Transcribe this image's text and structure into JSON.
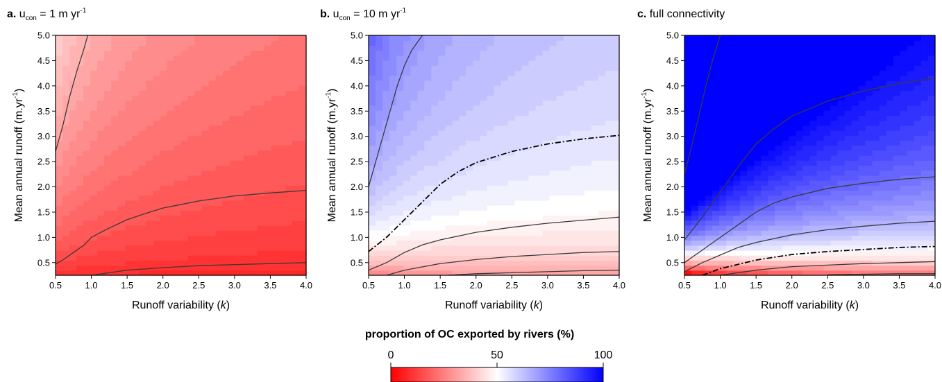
{
  "chart_data": [
    {
      "type": "heatmap",
      "panel_label": "a.",
      "title_parts": [
        "u",
        "con",
        " = 1 m yr",
        "-1"
      ],
      "xlabel_parts": [
        "Runoff variability (",
        "k",
        ")"
      ],
      "ylabel": "Mean annual runoff (m.yr",
      "ylabel_sup": "-1",
      "ylabel_end": ")",
      "xlim": [
        0.5,
        4.0
      ],
      "ylim": [
        0.25,
        5.0
      ],
      "xticks": [
        "0.5",
        "1.0",
        "1.5",
        "2.0",
        "2.5",
        "3.0",
        "3.5",
        "4.0"
      ],
      "yticks": [
        "0.5",
        "1.0",
        "1.5",
        "2.0",
        "2.5",
        "3.0",
        "3.5",
        "4.0",
        "4.5",
        "5.0"
      ],
      "field": {
        "kind": "red",
        "base": 0.06,
        "gain": 0.28
      },
      "contours": [
        {
          "style": "solid",
          "points": [
            [
              0.5,
              2.7
            ],
            [
              0.6,
              3.2
            ],
            [
              0.7,
              3.8
            ],
            [
              0.8,
              4.3
            ],
            [
              0.9,
              4.75
            ],
            [
              0.95,
              5.0
            ]
          ]
        },
        {
          "style": "solid",
          "points": [
            [
              0.5,
              0.47
            ],
            [
              0.6,
              0.55
            ],
            [
              0.75,
              0.7
            ],
            [
              0.9,
              0.85
            ],
            [
              1.0,
              1.0
            ],
            [
              1.2,
              1.15
            ],
            [
              1.5,
              1.35
            ],
            [
              1.75,
              1.47
            ],
            [
              2.0,
              1.58
            ],
            [
              2.5,
              1.72
            ],
            [
              3.0,
              1.82
            ],
            [
              3.5,
              1.88
            ],
            [
              4.0,
              1.93
            ]
          ]
        },
        {
          "style": "solid",
          "points": [
            [
              1.0,
              0.25
            ],
            [
              1.25,
              0.3
            ],
            [
              1.5,
              0.35
            ],
            [
              2.0,
              0.4
            ],
            [
              2.5,
              0.44
            ],
            [
              3.0,
              0.46
            ],
            [
              3.5,
              0.48
            ],
            [
              4.0,
              0.5
            ]
          ]
        }
      ]
    },
    {
      "type": "heatmap",
      "panel_label": "b.",
      "title_parts": [
        "u",
        "con",
        " = 10 m yr",
        "-1"
      ],
      "xlabel_parts": [
        "Runoff variability (",
        "k",
        ")"
      ],
      "ylabel": "Mean annual runoff (m.yr",
      "ylabel_sup": "-1",
      "ylabel_end": ")",
      "xlim": [
        0.5,
        4.0
      ],
      "ylim": [
        0.25,
        5.0
      ],
      "xticks": [
        "0.5",
        "1.0",
        "1.5",
        "2.0",
        "2.5",
        "3.0",
        "3.5",
        "4.0"
      ],
      "yticks": [
        "0.5",
        "1.0",
        "1.5",
        "2.0",
        "2.5",
        "3.0",
        "3.5",
        "4.0",
        "4.5",
        "5.0"
      ],
      "field": {
        "kind": "diverge",
        "base": 0.4,
        "gain": 0.12
      },
      "contours": [
        {
          "style": "solid",
          "points": [
            [
              0.5,
              2.0
            ],
            [
              0.6,
              2.5
            ],
            [
              0.7,
              3.0
            ],
            [
              0.8,
              3.5
            ],
            [
              0.9,
              4.0
            ],
            [
              1.0,
              4.4
            ],
            [
              1.1,
              4.7
            ],
            [
              1.25,
              5.0
            ]
          ]
        },
        {
          "style": "dashdot",
          "points": [
            [
              0.5,
              0.72
            ],
            [
              0.75,
              1.0
            ],
            [
              1.0,
              1.35
            ],
            [
              1.25,
              1.7
            ],
            [
              1.5,
              2.05
            ],
            [
              1.75,
              2.3
            ],
            [
              2.0,
              2.48
            ],
            [
              2.5,
              2.7
            ],
            [
              3.0,
              2.85
            ],
            [
              3.5,
              2.95
            ],
            [
              4.0,
              3.02
            ]
          ]
        },
        {
          "style": "solid",
          "points": [
            [
              0.5,
              0.35
            ],
            [
              0.75,
              0.5
            ],
            [
              1.0,
              0.7
            ],
            [
              1.25,
              0.85
            ],
            [
              1.5,
              0.95
            ],
            [
              2.0,
              1.1
            ],
            [
              2.5,
              1.2
            ],
            [
              3.0,
              1.28
            ],
            [
              3.5,
              1.34
            ],
            [
              4.0,
              1.4
            ]
          ]
        },
        {
          "style": "solid",
          "points": [
            [
              0.75,
              0.25
            ],
            [
              1.0,
              0.35
            ],
            [
              1.5,
              0.48
            ],
            [
              2.0,
              0.56
            ],
            [
              2.5,
              0.62
            ],
            [
              3.0,
              0.66
            ],
            [
              3.5,
              0.7
            ],
            [
              4.0,
              0.72
            ]
          ]
        },
        {
          "style": "solid",
          "points": [
            [
              1.6,
              0.25
            ],
            [
              2.0,
              0.28
            ],
            [
              2.5,
              0.3
            ],
            [
              3.0,
              0.32
            ],
            [
              3.5,
              0.34
            ],
            [
              4.0,
              0.35
            ]
          ]
        }
      ]
    },
    {
      "type": "heatmap",
      "panel_label": "c.",
      "title_parts": [
        "full connectivity"
      ],
      "xlabel_parts": [
        "Runoff variability (",
        "k",
        ")"
      ],
      "ylabel": "Mean annual runoff (m.yr",
      "ylabel_sup": "-1",
      "ylabel_end": ")",
      "xlim": [
        0.5,
        4.0
      ],
      "ylim": [
        0.25,
        5.0
      ],
      "xticks": [
        "0.5",
        "1.0",
        "1.5",
        "2.0",
        "2.5",
        "3.0",
        "3.5",
        "4.0"
      ],
      "yticks": [
        "0.5",
        "1.0",
        "1.5",
        "2.0",
        "2.5",
        "3.0",
        "3.5",
        "4.0",
        "4.5",
        "5.0"
      ],
      "field": {
        "kind": "diverge",
        "base": 0.44,
        "gain": 0.42
      },
      "contours": [
        {
          "style": "solid",
          "points": [
            [
              0.5,
              2.25
            ],
            [
              0.6,
              2.8
            ],
            [
              0.7,
              3.4
            ],
            [
              0.8,
              4.0
            ],
            [
              0.9,
              4.55
            ],
            [
              1.0,
              5.0
            ]
          ]
        },
        {
          "style": "solid",
          "points": [
            [
              0.5,
              0.95
            ],
            [
              0.75,
              1.4
            ],
            [
              1.0,
              1.9
            ],
            [
              1.25,
              2.4
            ],
            [
              1.5,
              2.85
            ],
            [
              1.75,
              3.15
            ],
            [
              2.0,
              3.4
            ],
            [
              2.5,
              3.7
            ],
            [
              3.0,
              3.9
            ],
            [
              3.5,
              4.05
            ],
            [
              4.0,
              4.15
            ]
          ]
        },
        {
          "style": "solid",
          "points": [
            [
              0.5,
              0.5
            ],
            [
              0.75,
              0.75
            ],
            [
              1.0,
              1.0
            ],
            [
              1.25,
              1.25
            ],
            [
              1.5,
              1.5
            ],
            [
              1.75,
              1.68
            ],
            [
              2.0,
              1.8
            ],
            [
              2.5,
              1.97
            ],
            [
              3.0,
              2.07
            ],
            [
              3.5,
              2.15
            ],
            [
              4.0,
              2.2
            ]
          ]
        },
        {
          "style": "solid",
          "points": [
            [
              0.5,
              0.32
            ],
            [
              0.75,
              0.5
            ],
            [
              1.0,
              0.65
            ],
            [
              1.25,
              0.8
            ],
            [
              1.5,
              0.9
            ],
            [
              2.0,
              1.05
            ],
            [
              2.5,
              1.15
            ],
            [
              3.0,
              1.22
            ],
            [
              3.5,
              1.28
            ],
            [
              4.0,
              1.32
            ]
          ]
        },
        {
          "style": "dashdot",
          "points": [
            [
              0.75,
              0.25
            ],
            [
              1.0,
              0.38
            ],
            [
              1.5,
              0.55
            ],
            [
              2.0,
              0.66
            ],
            [
              2.5,
              0.72
            ],
            [
              3.0,
              0.76
            ],
            [
              3.5,
              0.8
            ],
            [
              4.0,
              0.82
            ]
          ]
        },
        {
          "style": "solid",
          "points": [
            [
              1.0,
              0.25
            ],
            [
              1.5,
              0.35
            ],
            [
              2.0,
              0.42
            ],
            [
              2.5,
              0.45
            ],
            [
              3.0,
              0.48
            ],
            [
              3.5,
              0.5
            ],
            [
              4.0,
              0.52
            ]
          ]
        },
        {
          "style": "solid",
          "points": [
            [
              2.5,
              0.26
            ],
            [
              3.0,
              0.27
            ],
            [
              3.5,
              0.28
            ],
            [
              4.0,
              0.28
            ]
          ]
        }
      ]
    }
  ],
  "colorbar": {
    "title": "proportion of OC exported by rivers (%)",
    "ticks": [
      "0",
      "50",
      "100"
    ],
    "min": 0,
    "max": 100,
    "colors": {
      "low": "#ff0000",
      "mid": "#ffffff",
      "high": "#0000ff"
    }
  }
}
